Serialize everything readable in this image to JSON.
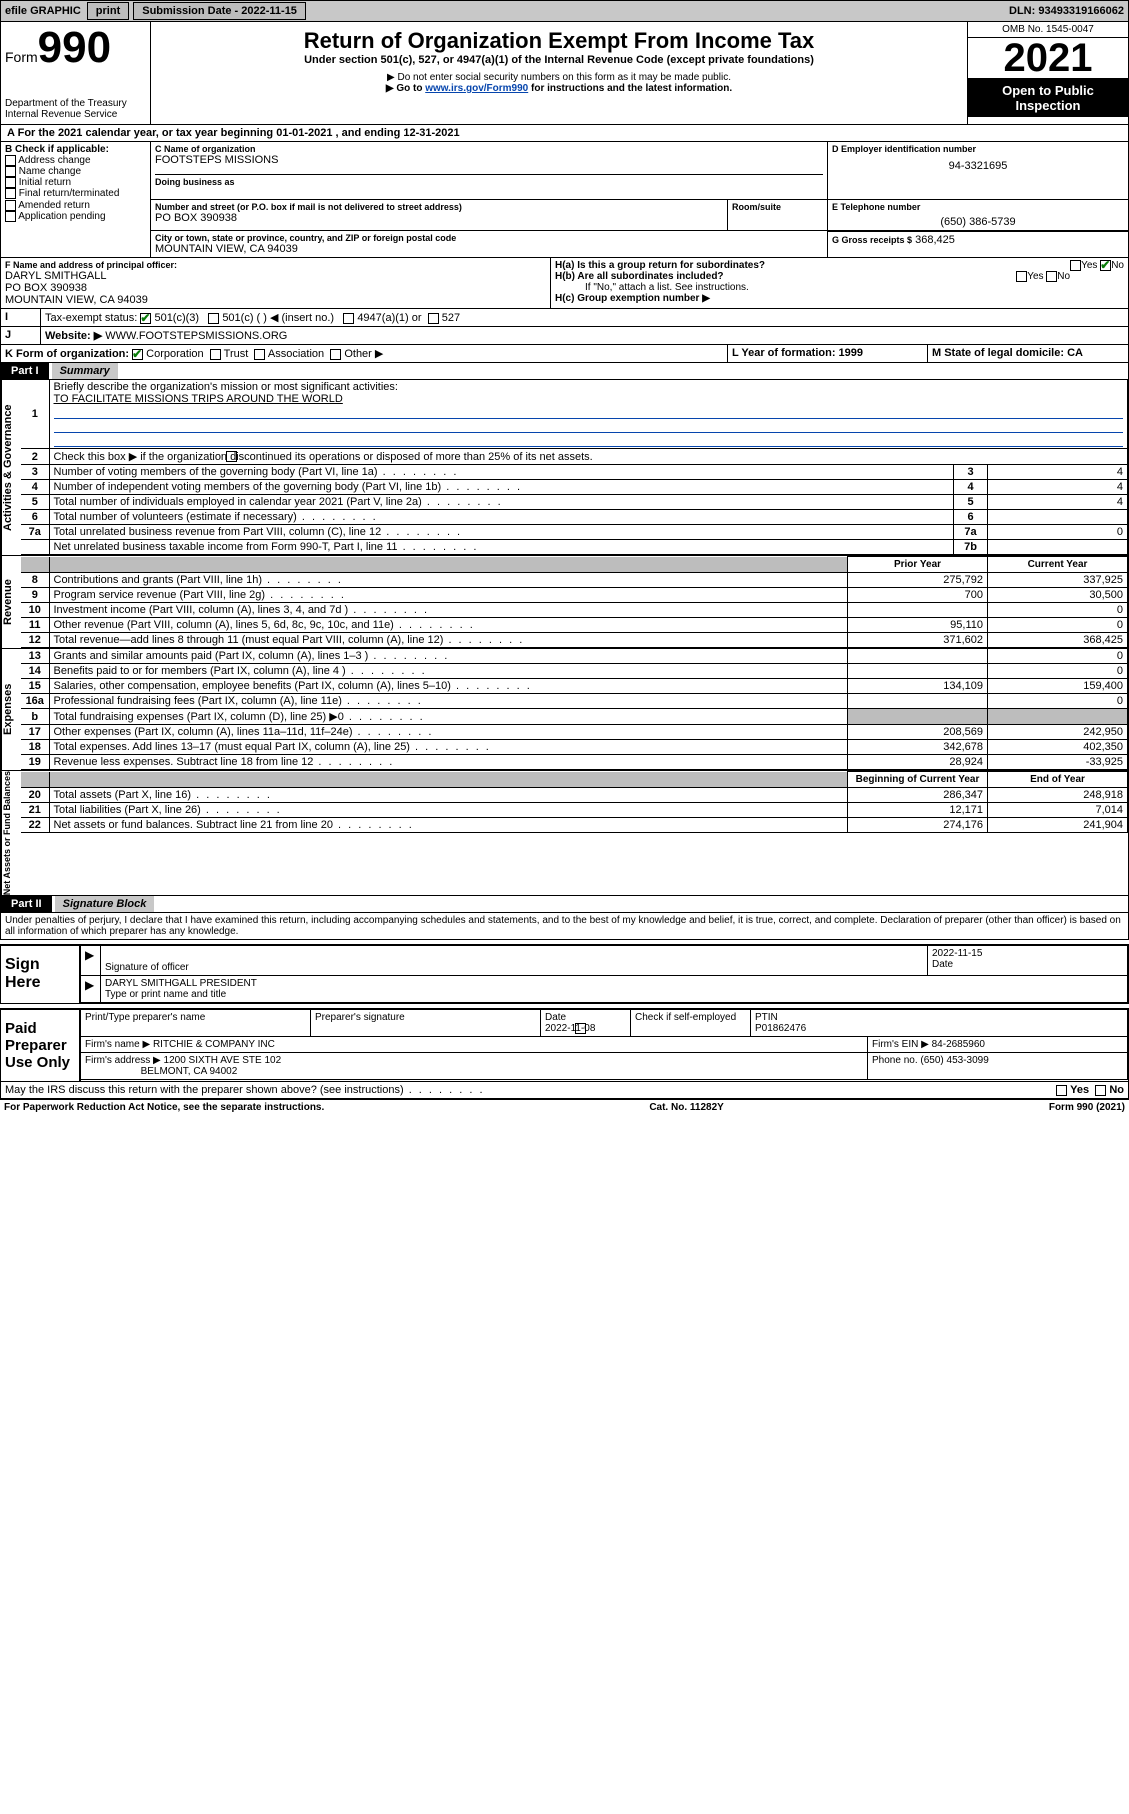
{
  "topbar": {
    "efile": "efile GRAPHIC",
    "print": "print",
    "subdate_label": "Submission Date - 2022-11-15",
    "dln_label": "DLN: 93493319166062"
  },
  "header": {
    "form_word": "Form",
    "form_no": "990",
    "dept": "Department of the Treasury",
    "irs": "Internal Revenue Service",
    "title": "Return of Organization Exempt From Income Tax",
    "subtitle": "Under section 501(c), 527, or 4947(a)(1) of the Internal Revenue Code (except private foundations)",
    "note1": "▶ Do not enter social security numbers on this form as it may be made public.",
    "note2_pre": "▶ Go to ",
    "note2_link": "www.irs.gov/Form990",
    "note2_post": " for instructions and the latest information.",
    "omb": "OMB No. 1545-0047",
    "year": "2021",
    "open": "Open to Public Inspection"
  },
  "sectionA": {
    "taxyear": "For the 2021 calendar year, or tax year beginning 01-01-2021    , and ending 12-31-2021",
    "A_label": "A",
    "B_label": "B Check if applicable:",
    "b_items": [
      "Address change",
      "Name change",
      "Initial return",
      "Final return/terminated",
      "Amended return",
      "Application pending"
    ],
    "C_label": "C Name of organization",
    "org_name": "FOOTSTEPS MISSIONS",
    "dba_label": "Doing business as",
    "addr_label": "Number and street (or P.O. box if mail is not delivered to street address)",
    "room_label": "Room/suite",
    "addr": "PO BOX 390938",
    "city_label": "City or town, state or province, country, and ZIP or foreign postal code",
    "city": "MOUNTAIN VIEW, CA   94039",
    "D_label": "D Employer identification number",
    "ein": "94-3321695",
    "E_label": "E Telephone number",
    "phone": "(650) 386-5739",
    "G_label": "G Gross receipts $",
    "gross": "368,425",
    "F_label": "F  Name and address of principal officer:",
    "officer_name": "DARYL SMITHGALL",
    "officer_addr1": "PO BOX 390938",
    "officer_addr2": "MOUNTAIN VIEW, CA  94039",
    "Ha": "H(a)  Is this a group return for subordinates?",
    "Hb": "H(b)  Are all subordinates included?",
    "Hb_note": "If \"No,\" attach a list. See instructions.",
    "Hc": "H(c)  Group exemption number ▶",
    "I_label": "Tax-exempt status:",
    "I_501c3": "501(c)(3)",
    "I_501c": "501(c) (   ) ◀ (insert no.)",
    "I_4947": "4947(a)(1) or",
    "I_527": "527",
    "J_label": "Website: ▶",
    "website": "WWW.FOOTSTEPSMISSIONS.ORG",
    "K_label": "K Form of organization:",
    "K_corp": "Corporation",
    "K_trust": "Trust",
    "K_assoc": "Association",
    "K_other": "Other ▶",
    "L_label": "L Year of formation: 1999",
    "M_label": "M State of legal domicile: CA",
    "yes": "Yes",
    "no": "No"
  },
  "part1": {
    "hdr": "Part I",
    "title": "Summary",
    "side_gov": "Activities & Governance",
    "side_rev": "Revenue",
    "side_exp": "Expenses",
    "side_net": "Net Assets or Fund Balances",
    "q1": "Briefly describe the organization's mission or most significant activities:",
    "mission": "TO FACILITATE MISSIONS TRIPS AROUND THE WORLD",
    "q2": "Check this box ▶          if the organization discontinued its operations or disposed of more than 25% of its net assets.",
    "rows_gov": [
      {
        "n": "3",
        "t": "Number of voting members of the governing body (Part VI, line 1a)",
        "b": "3",
        "v": "4"
      },
      {
        "n": "4",
        "t": "Number of independent voting members of the governing body (Part VI, line 1b)",
        "b": "4",
        "v": "4"
      },
      {
        "n": "5",
        "t": "Total number of individuals employed in calendar year 2021 (Part V, line 2a)",
        "b": "5",
        "v": "4"
      },
      {
        "n": "6",
        "t": "Total number of volunteers (estimate if necessary)",
        "b": "6",
        "v": ""
      },
      {
        "n": "7a",
        "t": "Total unrelated business revenue from Part VIII, column (C), line 12",
        "b": "7a",
        "v": "0"
      },
      {
        "n": "",
        "t": "Net unrelated business taxable income from Form 990-T, Part I, line 11",
        "b": "7b",
        "v": ""
      }
    ],
    "col_prior": "Prior Year",
    "col_curr": "Current Year",
    "rows_rev": [
      {
        "n": "8",
        "t": "Contributions and grants (Part VIII, line 1h)",
        "p": "275,792",
        "c": "337,925"
      },
      {
        "n": "9",
        "t": "Program service revenue (Part VIII, line 2g)",
        "p": "700",
        "c": "30,500"
      },
      {
        "n": "10",
        "t": "Investment income (Part VIII, column (A), lines 3, 4, and 7d )",
        "p": "",
        "c": "0"
      },
      {
        "n": "11",
        "t": "Other revenue (Part VIII, column (A), lines 5, 6d, 8c, 9c, 10c, and 11e)",
        "p": "95,110",
        "c": "0"
      },
      {
        "n": "12",
        "t": "Total revenue—add lines 8 through 11 (must equal Part VIII, column (A), line 12)",
        "p": "371,602",
        "c": "368,425"
      }
    ],
    "rows_exp": [
      {
        "n": "13",
        "t": "Grants and similar amounts paid (Part IX, column (A), lines 1–3 )",
        "p": "",
        "c": "0"
      },
      {
        "n": "14",
        "t": "Benefits paid to or for members (Part IX, column (A), line 4 )",
        "p": "",
        "c": "0"
      },
      {
        "n": "15",
        "t": "Salaries, other compensation, employee benefits (Part IX, column (A), lines 5–10)",
        "p": "134,109",
        "c": "159,400"
      },
      {
        "n": "16a",
        "t": "Professional fundraising fees (Part IX, column (A), line 11e)",
        "p": "",
        "c": "0"
      },
      {
        "n": "b",
        "t": "Total fundraising expenses (Part IX, column (D), line 25) ▶0",
        "p": "SHADE",
        "c": "SHADE"
      },
      {
        "n": "17",
        "t": "Other expenses (Part IX, column (A), lines 11a–11d, 11f–24e)",
        "p": "208,569",
        "c": "242,950"
      },
      {
        "n": "18",
        "t": "Total expenses. Add lines 13–17 (must equal Part IX, column (A), line 25)",
        "p": "342,678",
        "c": "402,350"
      },
      {
        "n": "19",
        "t": "Revenue less expenses. Subtract line 18 from line 12",
        "p": "28,924",
        "c": "-33,925"
      }
    ],
    "col_beg": "Beginning of Current Year",
    "col_end": "End of Year",
    "rows_net": [
      {
        "n": "20",
        "t": "Total assets (Part X, line 16)",
        "p": "286,347",
        "c": "248,918"
      },
      {
        "n": "21",
        "t": "Total liabilities (Part X, line 26)",
        "p": "12,171",
        "c": "7,014"
      },
      {
        "n": "22",
        "t": "Net assets or fund balances. Subtract line 21 from line 20",
        "p": "274,176",
        "c": "241,904"
      }
    ]
  },
  "part2": {
    "hdr": "Part II",
    "title": "Signature Block",
    "perjury": "Under penalties of perjury, I declare that I have examined this return, including accompanying schedules and statements, and to the best of my knowledge and belief, it is true, correct, and complete. Declaration of preparer (other than officer) is based on all information of which preparer has any knowledge.",
    "sign_here": "Sign Here",
    "sig_officer": "Signature of officer",
    "date": "Date",
    "sig_date": "2022-11-15",
    "officer_name": "DARYL SMITHGALL  PRESIDENT",
    "type_name": "Type or print name and title",
    "paid": "Paid Preparer Use Only",
    "prep_name_label": "Print/Type preparer's name",
    "prep_sig_label": "Preparer's signature",
    "prep_date_label": "Date",
    "prep_date": "2022-11-08",
    "check_if": "Check          if self-employed",
    "ptin_label": "PTIN",
    "ptin": "P01862476",
    "firm_name_label": "Firm's name     ▶",
    "firm_name": "RITCHIE & COMPANY INC",
    "firm_ein_label": "Firm's EIN ▶",
    "firm_ein": "84-2685960",
    "firm_addr_label": "Firm's address ▶",
    "firm_addr": "1200 SIXTH AVE STE 102",
    "firm_city": "BELMONT, CA  94002",
    "firm_phone_label": "Phone no.",
    "firm_phone": "(650) 453-3099",
    "discuss": "May the IRS discuss this return with the preparer shown above? (see instructions)"
  },
  "footer": {
    "paperwork": "For Paperwork Reduction Act Notice, see the separate instructions.",
    "catno": "Cat. No. 11282Y",
    "formno": "Form 990 (2021)"
  }
}
